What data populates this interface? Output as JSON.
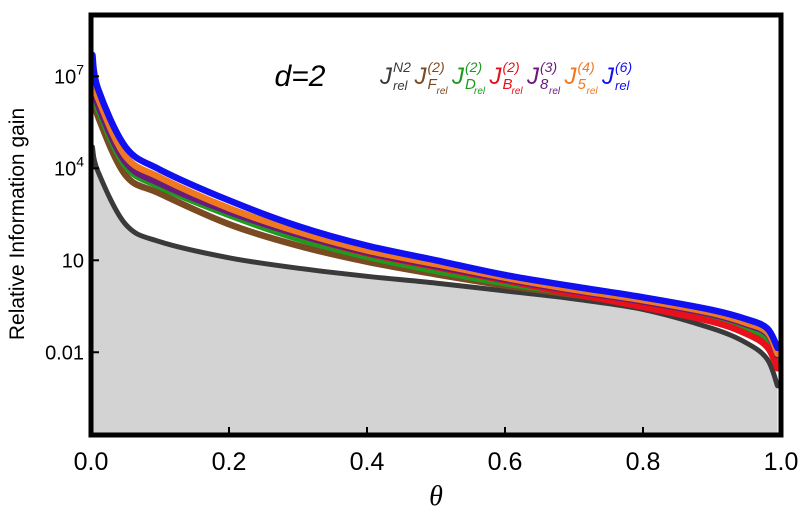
{
  "chart_data": {
    "type": "line",
    "title": "",
    "xlabel": "θ",
    "ylabel": "Relative Information gain",
    "annotation": "d=2",
    "xlim": [
      0,
      1
    ],
    "ylim": [
      2e-05,
      1000000000
    ],
    "yscale": "log",
    "xticks": [
      {
        "value": 0.0,
        "label": "0.0"
      },
      {
        "value": 0.2,
        "label": "0.2"
      },
      {
        "value": 0.4,
        "label": "0.4"
      },
      {
        "value": 0.6,
        "label": "0.6"
      },
      {
        "value": 0.8,
        "label": "0.8"
      },
      {
        "value": 1.0,
        "label": "1.0"
      }
    ],
    "yticks": [
      {
        "value": 0.01,
        "mantissa": "0.01",
        "exponent": ""
      },
      {
        "value": 10,
        "mantissa": "10",
        "exponent": ""
      },
      {
        "value": 10000,
        "mantissa": "10",
        "exponent": "4"
      },
      {
        "value": 10000000,
        "mantissa": "10",
        "exponent": "7"
      }
    ],
    "fill_color": "#d3d3d3",
    "x": [
      0.002,
      0.01,
      0.05,
      0.1,
      0.2,
      0.3,
      0.4,
      0.5,
      0.6,
      0.7,
      0.8,
      0.9,
      0.95,
      0.98,
      0.995
    ],
    "series": [
      {
        "color": "#3a3a3a",
        "legend": {
          "base": "J",
          "sup": "N2",
          "sub": "rel"
        },
        "values": [
          50000,
          8000,
          150,
          40,
          12,
          5.5,
          3,
          1.8,
          1.0,
          0.55,
          0.25,
          0.06,
          0.02,
          0.006,
          0.0008
        ]
      },
      {
        "color": "#7a4a22",
        "legend": {
          "base": "J",
          "sup": "(2)",
          "sub": "F",
          "subsub": "rel"
        },
        "values": [
          3000000,
          500000,
          6000,
          1500,
          150,
          30,
          9,
          3.5,
          1.5,
          0.75,
          0.35,
          0.12,
          0.05,
          0.02,
          0.004
        ]
      },
      {
        "color": "#1e9b1e",
        "legend": {
          "base": "J",
          "sup": "(2)",
          "sub": "D",
          "subsub": "rel"
        },
        "values": [
          6000000,
          900000,
          12000,
          2500,
          300,
          50,
          13,
          4.5,
          1.8,
          0.85,
          0.4,
          0.14,
          0.065,
          0.03,
          0.006
        ]
      },
      {
        "color": "#e8101a",
        "legend": {
          "base": "J",
          "sup": "(2)",
          "sub": "B",
          "subsub": "rel"
        },
        "values": [
          10000000,
          1500000,
          20000,
          4000,
          400,
          70,
          17,
          6,
          2.2,
          0.8,
          0.3,
          0.1,
          0.04,
          0.015,
          0.003
        ]
      },
      {
        "color": "#6a1a7a",
        "legend": {
          "base": "J",
          "sup": "(3)",
          "sub": "8",
          "subsub": "rel"
        },
        "values": [
          8000000,
          1200000,
          16000,
          3200,
          380,
          70,
          18,
          6.5,
          2.4,
          1.0,
          0.45,
          0.17,
          0.08,
          0.04,
          0.008
        ]
      },
      {
        "color": "#f07820",
        "legend": {
          "base": "J",
          "sup": "(4)",
          "sub": "5",
          "subsub": "rel"
        },
        "values": [
          12000000,
          2000000,
          25000,
          5000,
          500,
          85,
          21,
          7.5,
          2.7,
          1.1,
          0.5,
          0.19,
          0.09,
          0.045,
          0.009
        ]
      },
      {
        "color": "#1010f0",
        "legend": {
          "base": "J",
          "sup": "(6)",
          "sub": "rel"
        },
        "values": [
          50000000,
          4000000,
          50000,
          9000,
          900,
          130,
          30,
          10,
          3.3,
          1.4,
          0.62,
          0.24,
          0.12,
          0.06,
          0.014
        ]
      }
    ]
  }
}
